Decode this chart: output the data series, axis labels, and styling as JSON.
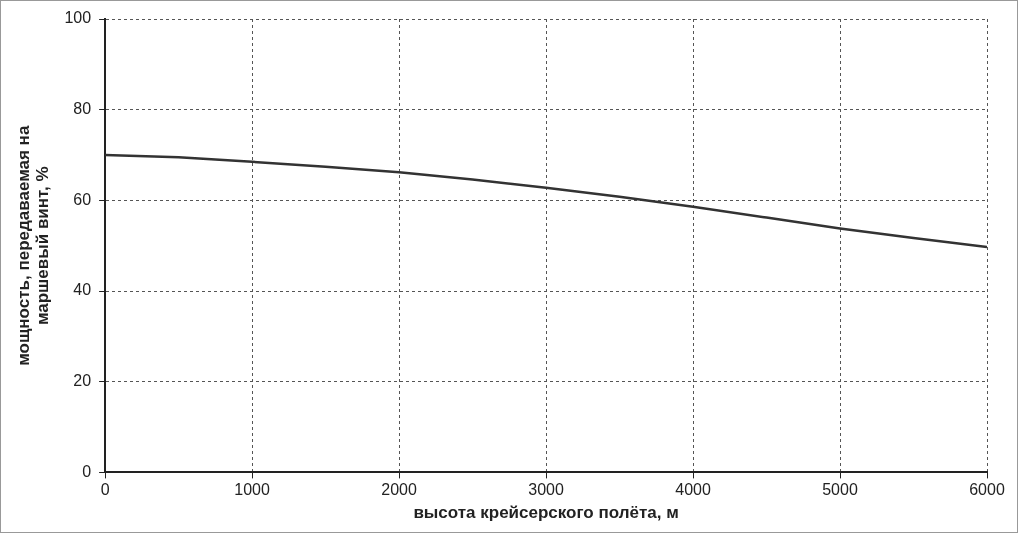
{
  "chart_data": {
    "type": "line",
    "xlabel": "высота крейсерского полёта, м",
    "ylabel": [
      "мощность, передаваемая на",
      "маршевый винт, %"
    ],
    "x": [
      0,
      500,
      1000,
      1500,
      2000,
      2500,
      3000,
      3500,
      4000,
      4500,
      5000,
      5500,
      6000
    ],
    "series": [
      {
        "color": "#333333",
        "values": [
          70,
          69.5,
          68.5,
          67.4,
          66.2,
          64.6,
          62.8,
          60.8,
          58.6,
          56.2,
          53.8,
          51.7,
          49.7
        ]
      }
    ],
    "xlim": [
      0,
      6000
    ],
    "xticks": [
      0,
      1000,
      2000,
      3000,
      4000,
      5000,
      6000
    ],
    "ylim": [
      0,
      100
    ],
    "yticks": [
      0,
      20,
      40,
      60,
      80,
      100
    ],
    "grid": true,
    "legend": false,
    "marker": "none",
    "line_style": "solid"
  }
}
